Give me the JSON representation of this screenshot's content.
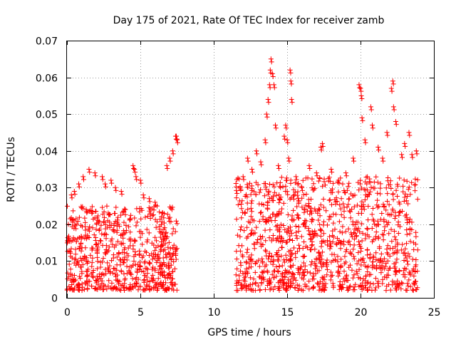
{
  "chart_data": {
    "type": "scatter",
    "title": "Day 175 of 2021, Rate Of TEC Index for receiver zamb",
    "xlabel": "GPS time / hours",
    "ylabel": "ROTI / TECUs",
    "xlim": [
      0,
      25
    ],
    "ylim": [
      0,
      0.07
    ],
    "xticks": [
      "0",
      "5",
      "10",
      "15",
      "20",
      "25"
    ],
    "yticks": [
      "0",
      "0.01",
      "0.02",
      "0.03",
      "0.04",
      "0.05",
      "0.06",
      "0.07"
    ],
    "grid": true,
    "marker": "+",
    "color": "#ff0000",
    "series": [
      {
        "segments": [
          {
            "x_start": 0.0,
            "x_end": 7.5,
            "base_min": 0.002,
            "base_max": 0.025
          },
          {
            "x_start": 11.5,
            "x_end": 23.9,
            "base_min": 0.002,
            "base_max": 0.033
          }
        ],
        "outliers": [
          [
            0.3,
            0.028
          ],
          [
            0.5,
            0.029
          ],
          [
            0.8,
            0.031
          ],
          [
            1.1,
            0.033
          ],
          [
            1.5,
            0.035
          ],
          [
            1.9,
            0.034
          ],
          [
            2.4,
            0.033
          ],
          [
            2.6,
            0.031
          ],
          [
            3.0,
            0.032
          ],
          [
            3.3,
            0.03
          ],
          [
            3.7,
            0.029
          ],
          [
            4.5,
            0.036
          ],
          [
            4.6,
            0.035
          ],
          [
            4.7,
            0.033
          ],
          [
            5.0,
            0.032
          ],
          [
            5.2,
            0.028
          ],
          [
            5.6,
            0.027
          ],
          [
            6.0,
            0.026
          ],
          [
            6.8,
            0.036
          ],
          [
            7.0,
            0.038
          ],
          [
            7.2,
            0.04
          ],
          [
            7.4,
            0.044
          ],
          [
            7.45,
            0.044
          ],
          [
            7.5,
            0.043
          ],
          [
            11.8,
            0.03
          ],
          [
            12.0,
            0.033
          ],
          [
            12.3,
            0.038
          ],
          [
            12.6,
            0.035
          ],
          [
            12.9,
            0.04
          ],
          [
            13.2,
            0.037
          ],
          [
            13.5,
            0.043
          ],
          [
            13.6,
            0.05
          ],
          [
            13.7,
            0.054
          ],
          [
            13.8,
            0.058
          ],
          [
            13.85,
            0.062
          ],
          [
            13.9,
            0.065
          ],
          [
            14.0,
            0.061
          ],
          [
            14.1,
            0.058
          ],
          [
            14.2,
            0.047
          ],
          [
            14.4,
            0.036
          ],
          [
            14.8,
            0.044
          ],
          [
            14.9,
            0.047
          ],
          [
            15.0,
            0.043
          ],
          [
            15.1,
            0.038
          ],
          [
            15.2,
            0.062
          ],
          [
            15.25,
            0.059
          ],
          [
            15.3,
            0.054
          ],
          [
            15.6,
            0.033
          ],
          [
            16.0,
            0.03
          ],
          [
            16.5,
            0.036
          ],
          [
            17.0,
            0.034
          ],
          [
            17.3,
            0.041
          ],
          [
            17.4,
            0.042
          ],
          [
            18.0,
            0.035
          ],
          [
            18.5,
            0.032
          ],
          [
            19.0,
            0.034
          ],
          [
            19.5,
            0.038
          ],
          [
            19.9,
            0.058
          ],
          [
            20.0,
            0.057
          ],
          [
            20.05,
            0.055
          ],
          [
            20.1,
            0.049
          ],
          [
            20.3,
            0.043
          ],
          [
            20.7,
            0.052
          ],
          [
            20.8,
            0.047
          ],
          [
            21.2,
            0.041
          ],
          [
            21.5,
            0.038
          ],
          [
            21.8,
            0.045
          ],
          [
            22.1,
            0.057
          ],
          [
            22.2,
            0.059
          ],
          [
            22.25,
            0.052
          ],
          [
            22.4,
            0.048
          ],
          [
            22.8,
            0.039
          ],
          [
            23.0,
            0.042
          ],
          [
            23.3,
            0.045
          ],
          [
            23.5,
            0.039
          ],
          [
            23.8,
            0.04
          ]
        ]
      }
    ]
  }
}
